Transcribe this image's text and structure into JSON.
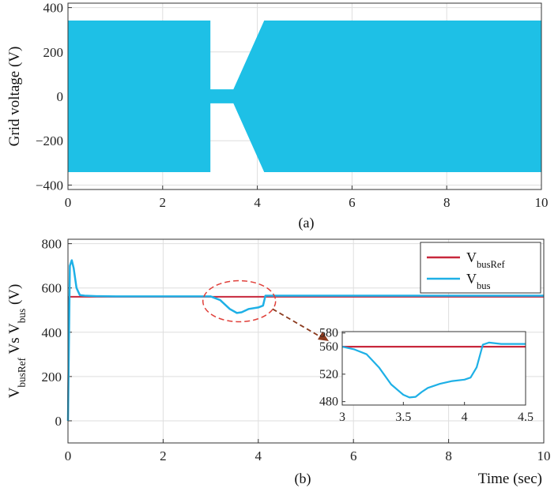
{
  "chart_data": [
    {
      "id": "a",
      "type": "area",
      "caption": "(a)",
      "ylabel": "Grid voltage (V)",
      "xlabel": "",
      "xlim": [
        0,
        10
      ],
      "ylim": [
        -420,
        420
      ],
      "xticks": [
        "0",
        "2",
        "4",
        "6",
        "8",
        "10"
      ],
      "yticks": [
        "-400",
        "-200",
        "0",
        "200",
        "400"
      ],
      "grid": true,
      "color": "#1EC0E6",
      "envelope": {
        "x": [
          0,
          3.0,
          3.0,
          3.5,
          4.15,
          10
        ],
        "upper": [
          340,
          340,
          30,
          30,
          340,
          340
        ],
        "lower": [
          -340,
          -340,
          -30,
          -30,
          -340,
          -340
        ]
      }
    },
    {
      "id": "b",
      "type": "line",
      "caption": "(b)",
      "ylabel": {
        "main": "V",
        "sub1": "busRef",
        "mid": " Vs V",
        "sub2": "bus",
        "unit": "  (V)"
      },
      "xlabel": "Time (sec)",
      "xlim": [
        0,
        10
      ],
      "ylim": [
        -100,
        820
      ],
      "xticks": [
        "0",
        "2",
        "4",
        "6",
        "8",
        "10"
      ],
      "yticks": [
        "0",
        "200",
        "400",
        "600",
        "800"
      ],
      "grid": true,
      "legend_position": "top-right",
      "legend": [
        {
          "main": "V",
          "sub": "busRef",
          "color": "#C8283C"
        },
        {
          "main": "V",
          "sub": "bus",
          "color": "#1EB0E6"
        }
      ],
      "series": [
        {
          "color": "#C8283C",
          "x": [
            0,
            0.02,
            10
          ],
          "y": [
            0,
            560,
            560
          ]
        },
        {
          "color": "#1EB0E6",
          "x": [
            0,
            0.04,
            0.08,
            0.12,
            0.18,
            0.25,
            0.35,
            0.6,
            1.0,
            2.0,
            3.0,
            3.2,
            3.4,
            3.55,
            3.65,
            3.8,
            4.0,
            4.1,
            4.15,
            4.22,
            5.0,
            10
          ],
          "y": [
            0,
            700,
            725,
            690,
            600,
            568,
            565,
            563,
            562,
            562,
            562,
            545,
            505,
            487,
            490,
            505,
            512,
            520,
            565,
            565,
            565,
            565
          ]
        }
      ],
      "inset": {
        "xlim": [
          3,
          4.5
        ],
        "ylim": [
          475,
          582
        ],
        "xticks": [
          "3",
          "3.5",
          "4",
          "4.5"
        ],
        "yticks": [
          "480",
          "520",
          "560",
          "580"
        ],
        "series": [
          {
            "color": "#C8283C",
            "x": [
              3,
              4.5
            ],
            "y": [
              560,
              560
            ]
          },
          {
            "color": "#1EB0E6",
            "x": [
              3.0,
              3.1,
              3.2,
              3.3,
              3.4,
              3.5,
              3.55,
              3.6,
              3.65,
              3.7,
              3.8,
              3.9,
              4.0,
              4.05,
              4.1,
              4.15,
              4.2,
              4.3,
              4.5
            ],
            "y": [
              560,
              556,
              549,
              530,
              505,
              490,
              486,
              487,
              494,
              500,
              506,
              510,
              512,
              515,
              530,
              563,
              566,
              564,
              564
            ]
          }
        ]
      }
    }
  ]
}
